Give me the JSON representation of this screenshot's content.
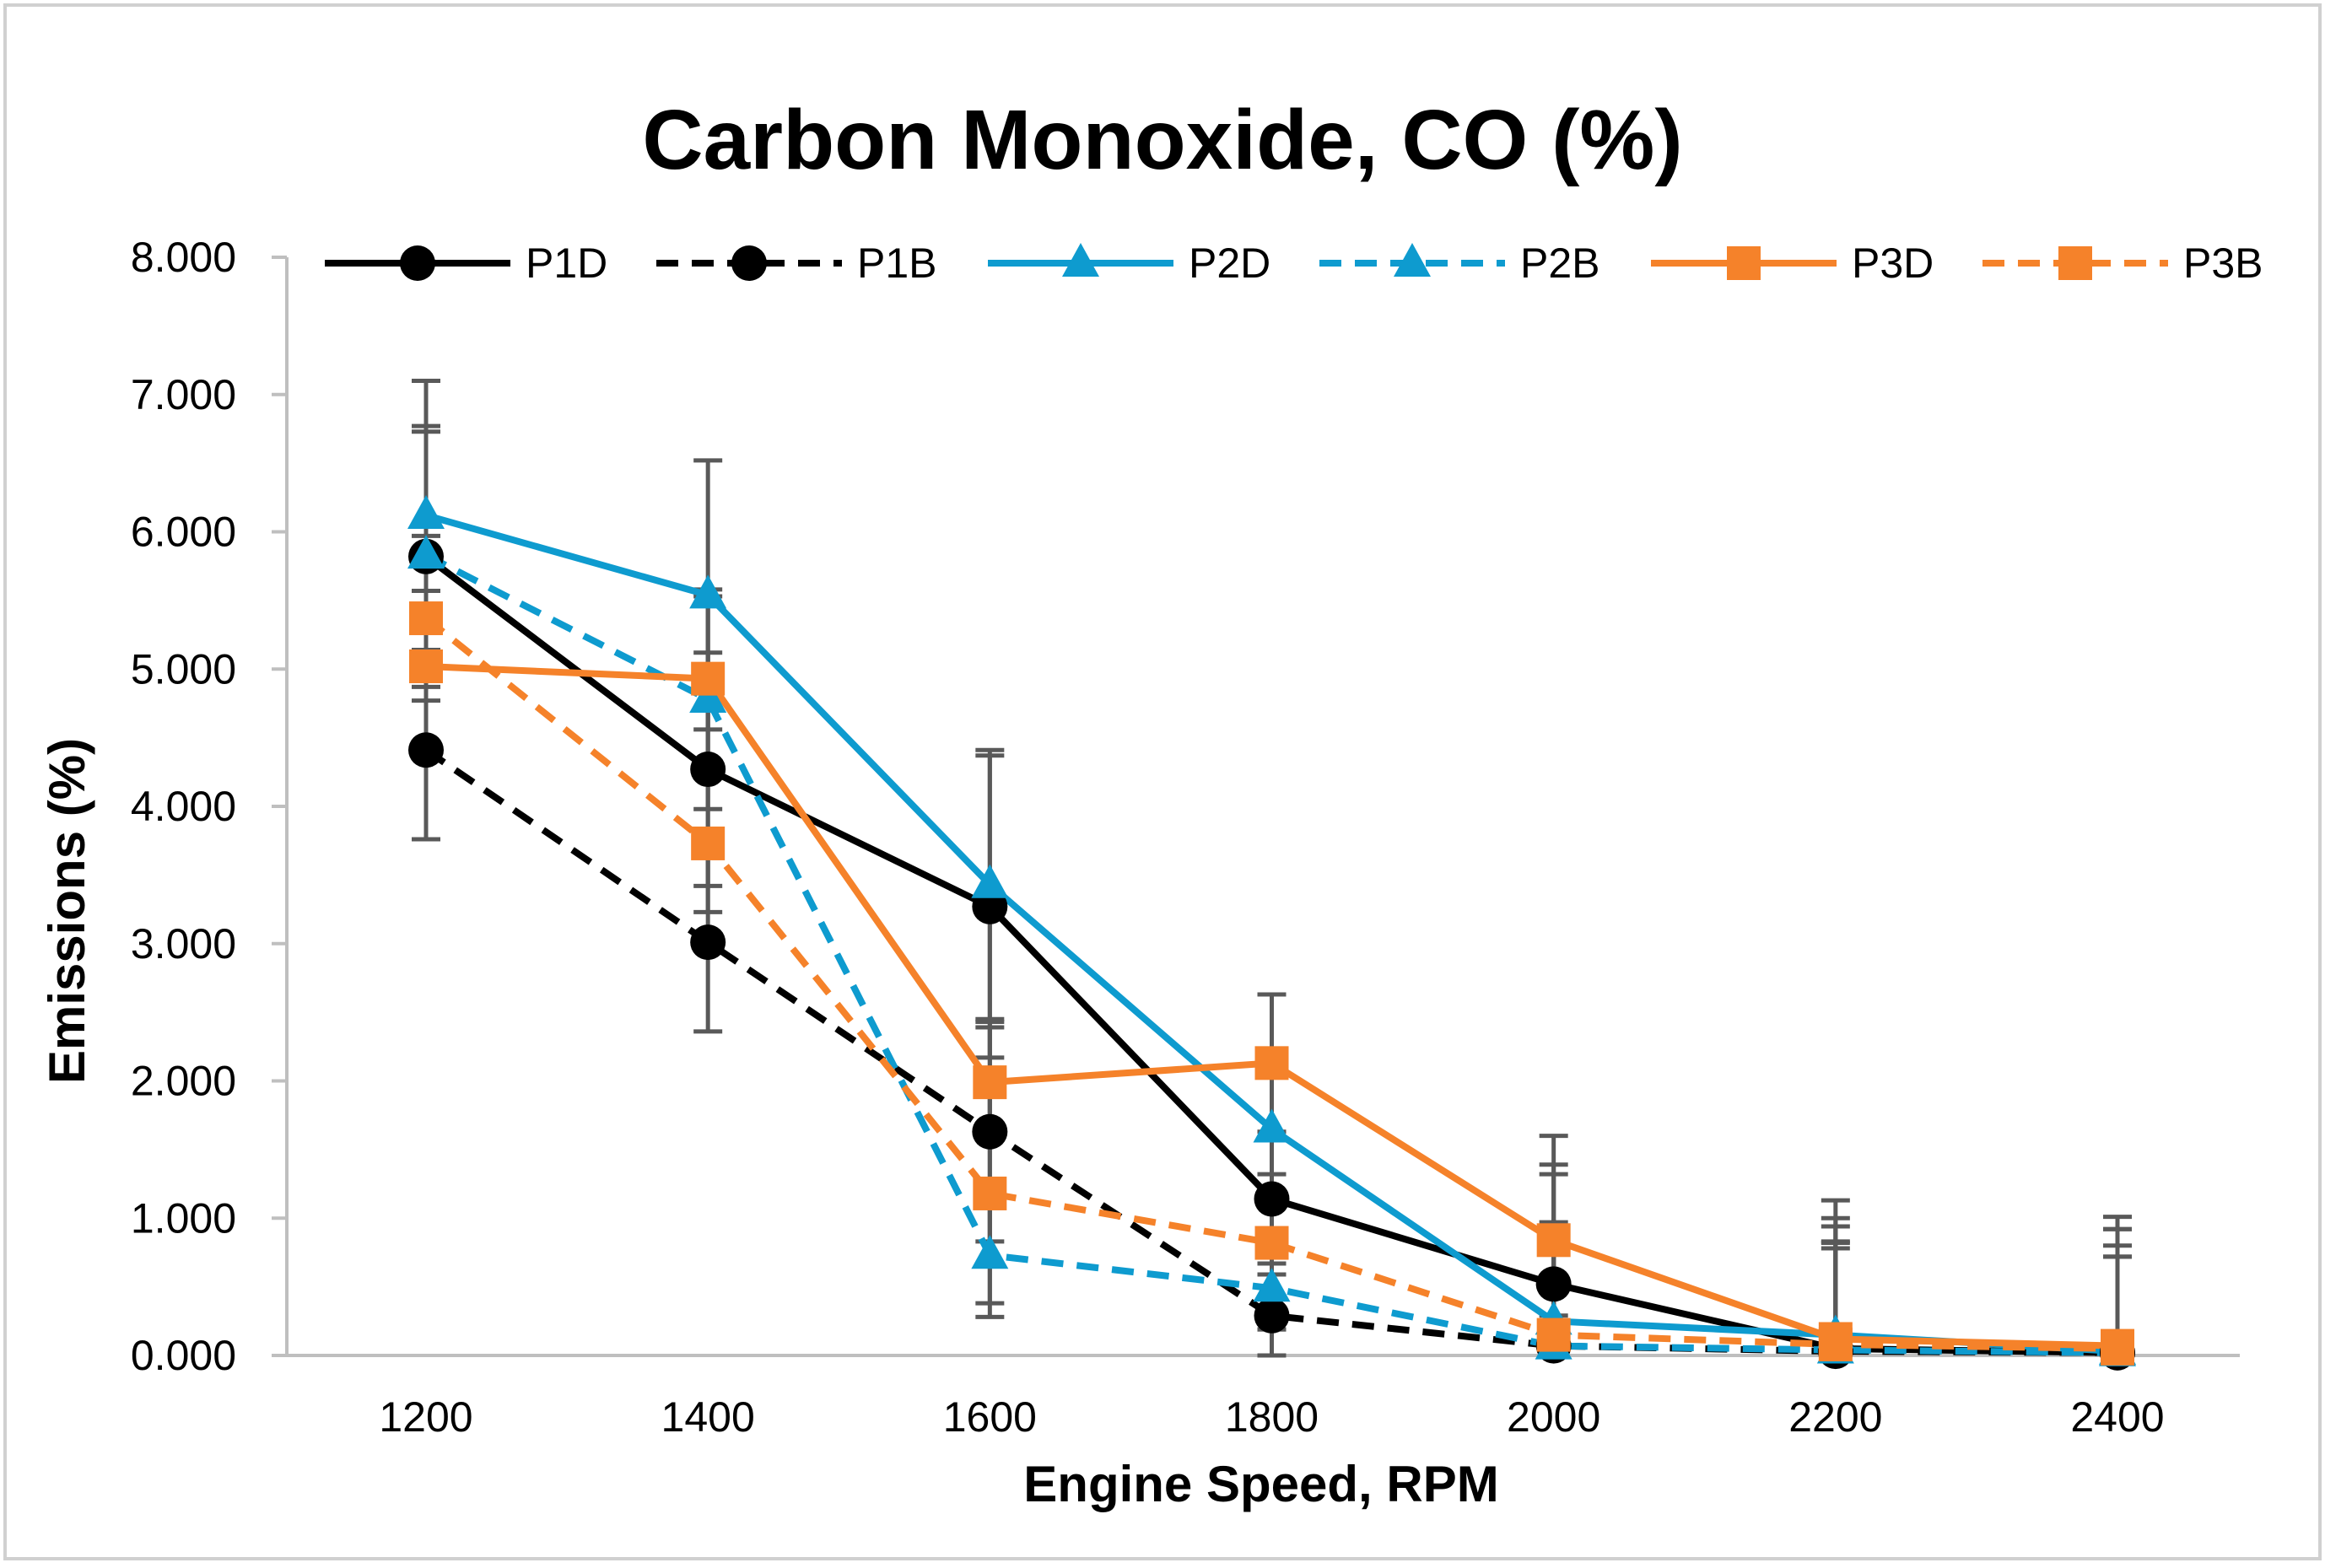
{
  "chart_data": {
    "type": "line",
    "title": "Carbon Monoxide, CO (%)",
    "xlabel": "Engine Speed, RPM",
    "ylabel": "Emissions (%)",
    "categories": [
      "1200",
      "1400",
      "1600",
      "1800",
      "2000",
      "2200",
      "2400"
    ],
    "y_tick_labels": [
      "0.000",
      "1.000",
      "2.000",
      "3.000",
      "4.000",
      "5.000",
      "6.000",
      "7.000",
      "8.000"
    ],
    "ylim": [
      0,
      8
    ],
    "grid": false,
    "legend_position": "top",
    "series": [
      {
        "name": "P1D",
        "color": "#000000",
        "line": "solid",
        "marker": "circle",
        "values": [
          5.82,
          4.27,
          3.27,
          1.14,
          0.52,
          0.05,
          0.02
        ],
        "errors": [
          0.95,
          0.85,
          1.1,
          0.95,
          0.8,
          0.95,
          0.9
        ]
      },
      {
        "name": "P1B",
        "color": "#000000",
        "line": "dashed",
        "marker": "circle",
        "values": [
          4.41,
          3.01,
          1.63,
          0.29,
          0.07,
          0.03,
          0.02
        ],
        "errors": [
          0.65,
          0.65,
          0.8,
          0.3,
          0.5,
          0.8,
          0.7
        ]
      },
      {
        "name": "P2D",
        "color": "#0E9BCF",
        "line": "solid",
        "marker": "triangle",
        "values": [
          6.12,
          5.54,
          3.43,
          1.65,
          0.25,
          0.15,
          0.03
        ],
        "errors": [
          0.98,
          0.98,
          0.98,
          0.98,
          1.35,
          0.98,
          0.98
        ]
      },
      {
        "name": "P2B",
        "color": "#0E9BCF",
        "line": "dashed",
        "marker": "triangle",
        "values": [
          5.83,
          4.78,
          0.73,
          0.49,
          0.07,
          0.04,
          0.02
        ],
        "errors": [
          0.9,
          0.8,
          0.35,
          0.3,
          0.9,
          0.9,
          0.9
        ]
      },
      {
        "name": "P3D",
        "color": "#F5822A",
        "line": "solid",
        "marker": "square",
        "values": [
          5.02,
          4.93,
          1.99,
          2.13,
          0.84,
          0.12,
          0.07
        ],
        "errors": [
          0.55,
          0.6,
          0.4,
          0.5,
          0.55,
          0.7,
          0.65
        ]
      },
      {
        "name": "P3B",
        "color": "#F5822A",
        "line": "dashed",
        "marker": "square",
        "values": [
          5.37,
          3.73,
          1.18,
          0.82,
          0.15,
          0.08,
          0.05
        ],
        "errors": [
          0.6,
          0.5,
          0.9,
          0.5,
          0.7,
          0.7,
          0.75
        ]
      }
    ]
  }
}
